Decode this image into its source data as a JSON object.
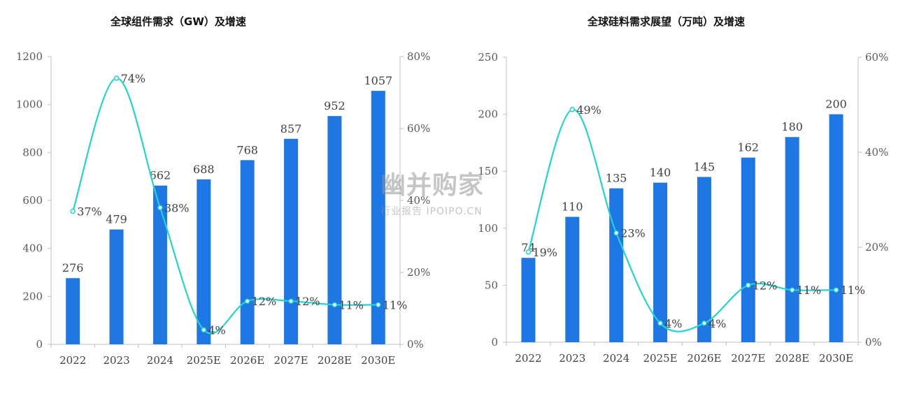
{
  "chart_data": [
    {
      "type": "bar",
      "title": "全球组件需求（GW）及增速",
      "categories": [
        "2022",
        "2023",
        "2024",
        "2025E",
        "2026E",
        "2027E",
        "2028E",
        "2030E"
      ],
      "series": [
        {
          "type": "bar",
          "axis": "left",
          "values": [
            276,
            479,
            662,
            688,
            768,
            857,
            952,
            1057
          ],
          "labels": [
            "276",
            "479",
            "662",
            "688",
            "768",
            "857",
            "952",
            "1057"
          ]
        },
        {
          "type": "line",
          "axis": "right",
          "values": [
            37,
            74,
            38,
            4,
            12,
            12,
            11,
            11
          ],
          "labels": [
            "37%",
            "74%",
            "38%",
            "4%",
            "12%",
            "12%",
            "11%",
            "11%"
          ]
        }
      ],
      "ylim": [
        0,
        1200
      ],
      "y_ticks": [
        "0",
        "200",
        "400",
        "600",
        "800",
        "1000",
        "1200"
      ],
      "y2lim": [
        0,
        80
      ],
      "y2_ticks": [
        "0%",
        "20%",
        "40%",
        "60%",
        "80%"
      ],
      "grid": false,
      "bar_color": "#1f77e3",
      "line_color": "#22d3d0"
    },
    {
      "type": "bar",
      "title": "全球硅料需求展望（万吨）及增速",
      "categories": [
        "2022",
        "2023",
        "2024",
        "2025E",
        "2026E",
        "2027E",
        "2028E",
        "2030E"
      ],
      "series": [
        {
          "type": "bar",
          "axis": "left",
          "values": [
            74,
            110,
            135,
            140,
            145,
            162,
            180,
            200
          ],
          "labels": [
            "74",
            "110",
            "135",
            "140",
            "145",
            "162",
            "180",
            "200"
          ]
        },
        {
          "type": "line",
          "axis": "right",
          "values": [
            19,
            49,
            23,
            4,
            4,
            12,
            11,
            11
          ],
          "labels": [
            "19%",
            "49%",
            "23%",
            "4%",
            "4%",
            "12%",
            "11%",
            "11%"
          ]
        }
      ],
      "ylim": [
        0,
        250
      ],
      "y_ticks": [
        "0",
        "50",
        "100",
        "150",
        "200",
        "250"
      ],
      "y2lim": [
        0,
        60
      ],
      "y2_ticks": [
        "0%",
        "20%",
        "40%",
        "60%"
      ],
      "grid": false,
      "bar_color": "#1f77e3",
      "line_color": "#22d3d0"
    }
  ],
  "watermark": {
    "main": "幽并购家",
    "sub": "行业报告 IPOIPO.CN"
  }
}
